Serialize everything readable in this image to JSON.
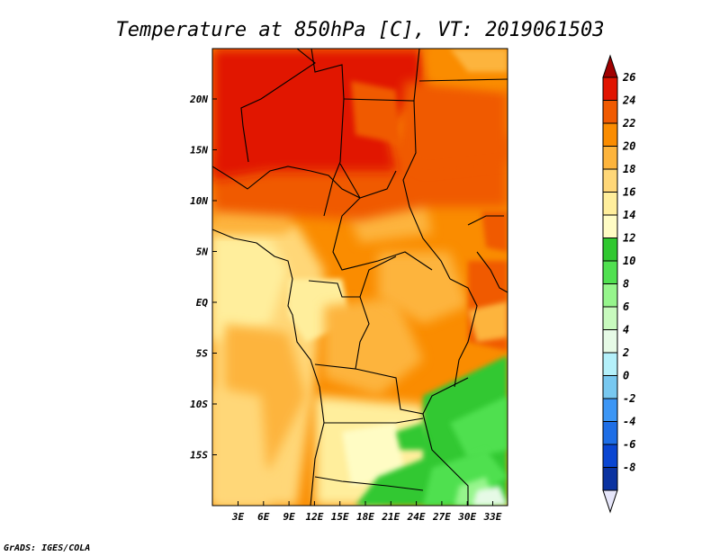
{
  "title": "Temperature at 850hPa [C], VT: 2019061503",
  "credit": "GrADS: IGES/COLA",
  "axes": {
    "lat_labels": [
      "20N",
      "15N",
      "10N",
      "5N",
      "EQ",
      "5S",
      "10S",
      "15S"
    ],
    "lon_labels": [
      "3E",
      "6E",
      "9E",
      "12E",
      "15E",
      "18E",
      "21E",
      "24E",
      "27E",
      "30E",
      "33E"
    ]
  },
  "colorbar": {
    "labels": [
      "26",
      "24",
      "22",
      "20",
      "18",
      "16",
      "14",
      "12",
      "10",
      "8",
      "6",
      "4",
      "2",
      "0",
      "-2",
      "-4",
      "-6",
      "-8"
    ],
    "colors": [
      "#a00000",
      "#e11400",
      "#f05a00",
      "#fa8c00",
      "#fdb43c",
      "#ffd778",
      "#ffee9c",
      "#fffcc4",
      "#30c830",
      "#50e050",
      "#96f58c",
      "#c8fabe",
      "#e6fae6",
      "#b4f0fa",
      "#78c8f0",
      "#3c96f5",
      "#1e6ee6",
      "#0a46d2",
      "#0a32a0",
      "#000080"
    ]
  }
}
